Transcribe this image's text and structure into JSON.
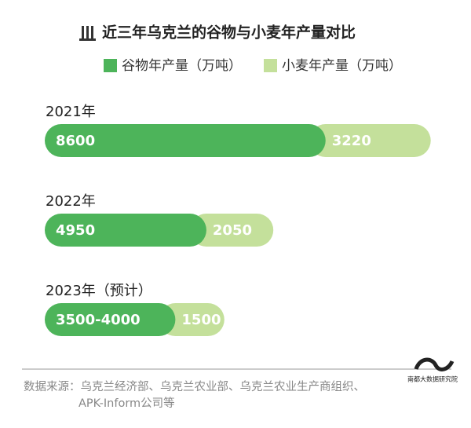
{
  "chart_data": {
    "type": "bar",
    "orientation": "horizontal",
    "stacked": true,
    "title": "近三年乌克兰的谷物与小麦年产量对比",
    "categories": [
      "2021年",
      "2022年",
      "2023年（预计）"
    ],
    "series": [
      {
        "name": "谷物年产量（万吨）",
        "color": "#4db45a",
        "values": [
          8600,
          4950,
          4000
        ],
        "value_labels": [
          "8600",
          "4950",
          "3500-4000"
        ]
      },
      {
        "name": "小麦年产量（万吨）",
        "color": "#c4e09b",
        "values": [
          3220,
          2050,
          1500
        ]
      }
    ],
    "source": [
      "数据来源：乌克兰经济部、乌克兰农业部、乌克兰农业生产商组织、",
      "APK-Inform公司等"
    ],
    "logo": "南都大数据研究院"
  }
}
